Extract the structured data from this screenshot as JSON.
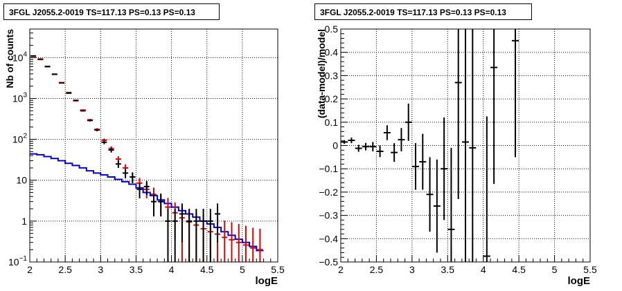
{
  "chart_data": [
    {
      "type": "line",
      "title": "3FGL J2055.2-0019 TS=117.13 PS=0.13 PS=0.13",
      "xlabel": "logE",
      "ylabel": "Nb of counts",
      "xlim": [
        2,
        5.5
      ],
      "ylim": [
        0.1,
        50000
      ],
      "yscale": "log",
      "grid": true,
      "x_ticks": [
        2,
        2.5,
        3,
        3.5,
        4,
        4.5,
        5,
        5.5
      ],
      "x_tick_labels": [
        "2",
        "2.5",
        "3",
        "3.5",
        "4",
        "4.5",
        "5",
        "5.5"
      ],
      "y_ticks": [
        0.1,
        1,
        10,
        100,
        1000,
        10000
      ],
      "series": [
        {
          "kind": "data",
          "color": "#000000",
          "x": [
            2.05,
            2.15,
            2.25,
            2.35,
            2.45,
            2.55,
            2.65,
            2.75,
            2.85,
            2.95,
            3.05,
            3.15,
            3.25,
            3.35,
            3.45,
            3.55,
            3.65,
            3.75,
            3.85,
            3.95,
            4.05,
            4.15,
            4.25,
            4.35,
            4.45,
            4.55,
            4.65
          ],
          "y": [
            11000,
            9200,
            6000,
            3900,
            2400,
            1350,
            900,
            500,
            290,
            170,
            85,
            55,
            25,
            15,
            12,
            6,
            7,
            3,
            3,
            1,
            1,
            1.5,
            1,
            1,
            1,
            1,
            1.5
          ],
          "yerr_low": [
            100,
            95,
            77,
            62,
            49,
            36,
            30,
            22,
            17,
            13,
            9.2,
            7.4,
            5,
            3.9,
            3.5,
            2.4,
            2.6,
            1.7,
            1.7,
            1,
            1,
            1.2,
            1,
            1,
            1,
            1,
            1.2
          ],
          "yerr_high": [
            100,
            95,
            77,
            62,
            49,
            36,
            30,
            22,
            17,
            13,
            9.2,
            7.4,
            5,
            3.9,
            3.5,
            2.4,
            2.6,
            1.7,
            1.7,
            1,
            1,
            1.2,
            1,
            1,
            1,
            1,
            1.2
          ]
        },
        {
          "kind": "model",
          "color": "#dd0000",
          "x": [
            2.05,
            2.15,
            2.25,
            2.35,
            2.45,
            2.55,
            2.65,
            2.75,
            2.85,
            2.95,
            3.05,
            3.15,
            3.25,
            3.35,
            3.45,
            3.55,
            3.65,
            3.75,
            3.85,
            3.95,
            4.05,
            4.15,
            4.25,
            4.35,
            4.45,
            4.55,
            4.65,
            4.75,
            4.85,
            4.95,
            5.05,
            5.15,
            5.25
          ],
          "y": [
            10800,
            9000,
            6100,
            3950,
            2450,
            1400,
            880,
            520,
            300,
            175,
            95,
            60,
            33,
            20,
            12,
            8.5,
            6,
            4.5,
            3,
            2.2,
            1.6,
            1.2,
            0.95,
            0.8,
            0.65,
            0.55,
            0.48,
            0.4,
            0.35,
            0.3,
            0.26,
            0.22,
            0.2
          ],
          "yerr_low": [
            104,
            95,
            78,
            63,
            49,
            37,
            30,
            23,
            17,
            13,
            9.7,
            7.7,
            5.7,
            4.5,
            3.5,
            2.9,
            2.4,
            2.1,
            1.7,
            1.5,
            1.26,
            1.1,
            0.85,
            0.7,
            0.55,
            0.45,
            0.38,
            0.3,
            0.25,
            0.2,
            0.16,
            0.12,
            0.1
          ],
          "yerr_high": [
            104,
            95,
            78,
            63,
            49,
            37,
            30,
            23,
            17,
            13,
            9.7,
            7.7,
            5.7,
            4.5,
            3.5,
            2.9,
            2.4,
            2.1,
            1.7,
            1.5,
            1.26,
            1.1,
            0.97,
            0.9,
            0.8,
            0.74,
            0.69,
            0.63,
            0.59,
            0.55,
            0.51,
            0.47,
            0.45
          ]
        },
        {
          "kind": "background-step",
          "color": "#0000cc",
          "x_edges": [
            2.0,
            2.1,
            2.2,
            2.3,
            2.4,
            2.5,
            2.6,
            2.7,
            2.8,
            2.9,
            3.0,
            3.1,
            3.2,
            3.3,
            3.4,
            3.5,
            3.6,
            3.7,
            3.8,
            3.9,
            4.0,
            4.1,
            4.2,
            4.3,
            4.4,
            4.5,
            4.6,
            4.7,
            4.8,
            4.9,
            5.0,
            5.1,
            5.2,
            5.3
          ],
          "y": [
            44,
            42,
            38,
            34,
            30,
            26,
            23,
            20,
            17,
            15,
            13.5,
            12,
            10.5,
            9.2,
            8,
            6.5,
            5,
            4.2,
            3.3,
            2.7,
            2.2,
            1.8,
            1.5,
            1.25,
            1.0,
            0.85,
            0.7,
            0.55,
            0.45,
            0.36,
            0.3,
            0.24,
            0.19
          ]
        }
      ]
    },
    {
      "type": "scatter",
      "title": "3FGL J2055.2-0019 TS=117.13 PS=0.13 PS=0.13",
      "xlabel": "logE",
      "ylabel": "(data-model)/model",
      "xlim": [
        2,
        5.5
      ],
      "ylim": [
        -0.5,
        0.5
      ],
      "grid": true,
      "x_ticks": [
        2,
        2.5,
        3,
        3.5,
        4,
        4.5,
        5,
        5.5
      ],
      "x_tick_labels": [
        "2",
        "2.5",
        "3",
        "3.5",
        "4",
        "4.5",
        "5",
        "5.5"
      ],
      "y_ticks": [
        -0.5,
        -0.4,
        -0.3,
        -0.2,
        -0.1,
        0,
        0.1,
        0.2,
        0.3,
        0.4,
        0.5
      ],
      "y_tick_labels": [
        "−0.5",
        "−0.4",
        "−0.3",
        "−0.2",
        "−0.1",
        "0",
        "0.1",
        "0.2",
        "0.3",
        "0.4",
        "0.5"
      ],
      "series": [
        {
          "color": "#000000",
          "x": [
            2.05,
            2.15,
            2.25,
            2.35,
            2.45,
            2.55,
            2.65,
            2.75,
            2.85,
            2.95,
            3.05,
            3.15,
            3.25,
            3.35,
            3.45,
            3.55,
            3.65,
            3.75,
            3.85,
            4.05,
            4.15,
            4.45
          ],
          "y": [
            0.015,
            0.022,
            -0.012,
            -0.005,
            -0.005,
            -0.025,
            0.055,
            -0.03,
            0.025,
            0.1,
            -0.09,
            -0.07,
            -0.21,
            -0.26,
            -0.1,
            -0.36,
            0.27,
            0.015,
            -0.01,
            -0.475,
            0.335,
            0.45
          ],
          "yerr": [
            0.008,
            0.012,
            0.015,
            0.016,
            0.02,
            0.025,
            0.032,
            0.04,
            0.05,
            0.08,
            0.1,
            0.12,
            0.16,
            0.2,
            0.22,
            0.35,
            0.5,
            0.55,
            0.6,
            0.6,
            0.5,
            0.5
          ]
        }
      ]
    }
  ]
}
